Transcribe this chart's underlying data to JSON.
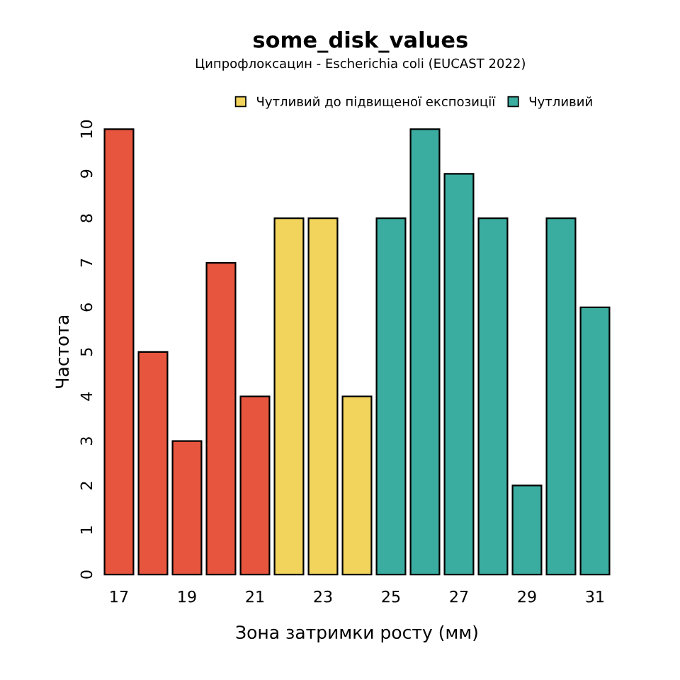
{
  "chart_data": {
    "type": "bar",
    "title": "some_disk_values",
    "subtitle": "Ципрофлоксацин - Escherichia coli (EUCAST 2022)",
    "xlabel": "Зона затримки росту (мм)",
    "ylabel": "Частота",
    "series": [
      {
        "color": "#e8553e",
        "x": [
          17,
          18,
          19,
          20,
          21
        ],
        "values": [
          10,
          5,
          3,
          7,
          4
        ]
      },
      {
        "name": "Чутливий до підвищеної експозиції",
        "color": "#f2d45c",
        "x": [
          22,
          23,
          24
        ],
        "values": [
          8,
          8,
          4
        ]
      },
      {
        "name": "Чутливий",
        "color": "#3aada0",
        "x": [
          25,
          26,
          27,
          28,
          29,
          30,
          31
        ],
        "values": [
          8,
          10,
          9,
          8,
          2,
          8,
          6
        ]
      }
    ],
    "xlim": [
      17,
      31
    ],
    "xticks": [
      17,
      19,
      21,
      23,
      25,
      27,
      29,
      31
    ],
    "ylim": [
      0,
      10
    ],
    "yticks": [
      0,
      1,
      2,
      3,
      4,
      5,
      6,
      7,
      8,
      9,
      10
    ],
    "grid": false,
    "legend": "top"
  }
}
